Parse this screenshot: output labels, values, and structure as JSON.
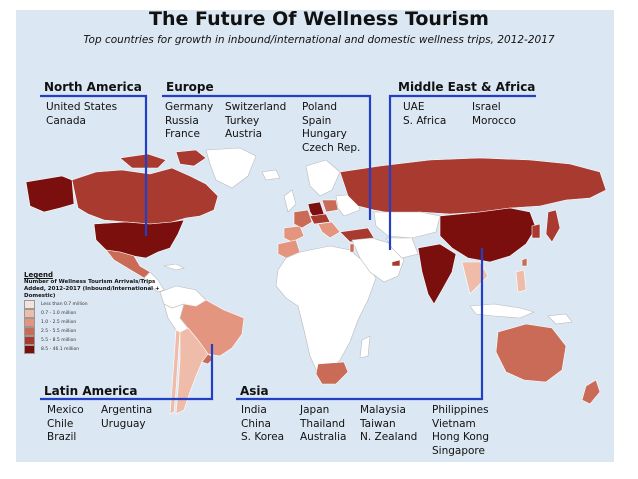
{
  "title": "The Future Of Wellness Tourism",
  "subtitle": "Top countries for growth in inbound/international and domestic wellness trips, 2012-2017",
  "colors": {
    "background": "#dbe7f3",
    "land_base": "#ffffff",
    "line": "#2340c4",
    "shades": [
      "#f6e2dc",
      "#efbcaa",
      "#e49580",
      "#c96b56",
      "#a83a30",
      "#7a0f0e"
    ]
  },
  "regions": {
    "north_america": {
      "heading": "North America",
      "columns": [
        [
          "United States",
          "Canada"
        ]
      ]
    },
    "europe": {
      "heading": "Europe",
      "columns": [
        [
          "Germany",
          "Russia",
          "France"
        ],
        [
          "Switzerland",
          "Turkey",
          "Austria"
        ],
        [
          "Poland",
          "Spain",
          "Hungary",
          "Czech Rep."
        ]
      ]
    },
    "middle_east_africa": {
      "heading": "Middle East & Africa",
      "columns": [
        [
          "UAE",
          "S. Africa"
        ],
        [
          "Israel",
          "Morocco"
        ]
      ]
    },
    "latin_america": {
      "heading": "Latin America",
      "columns": [
        [
          "Mexico",
          "Chile",
          "Brazil"
        ],
        [
          "Argentina",
          "Uruguay"
        ]
      ]
    },
    "asia": {
      "heading": "Asia",
      "columns": [
        [
          "India",
          "China",
          "S. Korea"
        ],
        [
          "Japan",
          "Thailand",
          "Australia"
        ],
        [
          "Malaysia",
          "Taiwan",
          "N. Zealand"
        ],
        [
          "Philippines",
          "Vietnam",
          "Hong Kong",
          "Singapore"
        ]
      ]
    }
  },
  "legend": {
    "heading": "Legend",
    "title": "Number of Wellness Tourism Arrivals/Trips Added, 2012-2017 (Inbound/International + Domestic)",
    "items": [
      "Less than 0.7 million",
      "0.7 - 1.0 million",
      "1.0 - 2.5 million",
      "2.5 - 5.5 million",
      "5.5 - 8.5 million",
      "8.5 - 46.1 million"
    ]
  }
}
